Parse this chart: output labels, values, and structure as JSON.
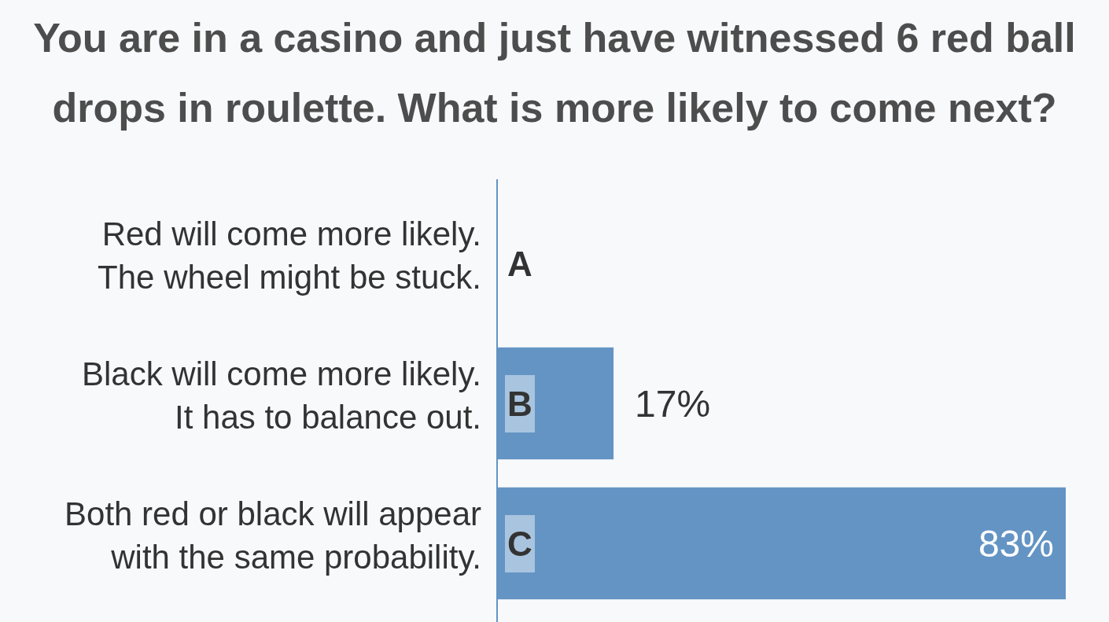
{
  "chart_data": {
    "type": "bar",
    "orientation": "horizontal",
    "title": "You are in a casino and just have witnessed 6 red ball drops in roulette. What is more likely to come next?",
    "categories": [
      "Red will come more likely.\nThe wheel might be stuck.",
      "Black will come more likely.\nIt has to balance out.",
      "Both red or black will appear\nwith the same probability."
    ],
    "values": [
      0,
      17,
      83
    ],
    "value_labels": [
      null,
      "17%",
      "83%"
    ],
    "color": "#6394c4",
    "annotations": [
      "A",
      "B",
      "C"
    ]
  }
}
